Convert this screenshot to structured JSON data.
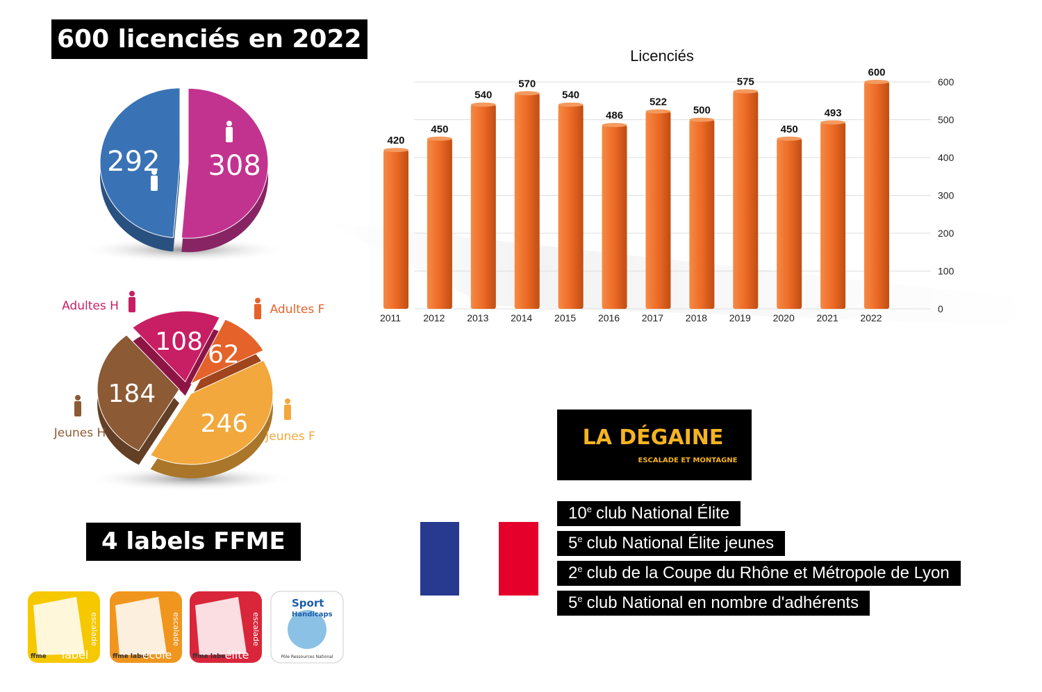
{
  "header": {
    "title": "600 licenciés en 2022"
  },
  "chart_data": [
    {
      "type": "pie",
      "values": [
        292,
        308
      ],
      "colors": [
        "#3a73b5",
        "#c2338f"
      ]
    },
    {
      "type": "pie",
      "categories": [
        "Adultes H",
        "Adultes F",
        "Jeunes F",
        "Jeunes H"
      ],
      "values": [
        108,
        62,
        246,
        184
      ],
      "colors": [
        "#c81e63",
        "#e5632a",
        "#f2a83c",
        "#8c5a35"
      ]
    },
    {
      "type": "bar",
      "title": "Licenciés",
      "categories": [
        "2011",
        "2012",
        "2013",
        "2014",
        "2015",
        "2016",
        "2017",
        "2018",
        "2019",
        "2020",
        "2021",
        "2022"
      ],
      "values": [
        420,
        450,
        540,
        570,
        540,
        486,
        522,
        500,
        575,
        450,
        493,
        600
      ],
      "color": "#ec6a26",
      "ylim": [
        0,
        600
      ],
      "yticks": [
        0,
        100,
        200,
        300,
        400,
        500,
        600
      ],
      "grid": true
    }
  ],
  "labels": {
    "title": "4 labels FFME",
    "badges": [
      {
        "side": "escalade",
        "brand": "ffme",
        "word": "label"
      },
      {
        "side": "escalade",
        "brand": "ffme label",
        "word": "école"
      },
      {
        "side": "escalade",
        "brand": "ffme label",
        "word": "élite"
      },
      {
        "side": "Sport",
        "brand": "Handicaps",
        "word": "Pôle Ressources National"
      }
    ]
  },
  "logo": {
    "name": "LA DÉGAINE",
    "tagline": "ESCALADE ET MONTAGNE"
  },
  "rankings": [
    {
      "rank": "10",
      "suffix": "e",
      "text": "club National Élite"
    },
    {
      "rank": "5",
      "suffix": "e",
      "text": "club National Élite jeunes"
    },
    {
      "rank": "2",
      "suffix": "e",
      "text": "club de la Coupe du Rhône et Métropole de Lyon"
    },
    {
      "rank": "5",
      "suffix": "e",
      "text": "club National en nombre d'adhérents"
    }
  ]
}
